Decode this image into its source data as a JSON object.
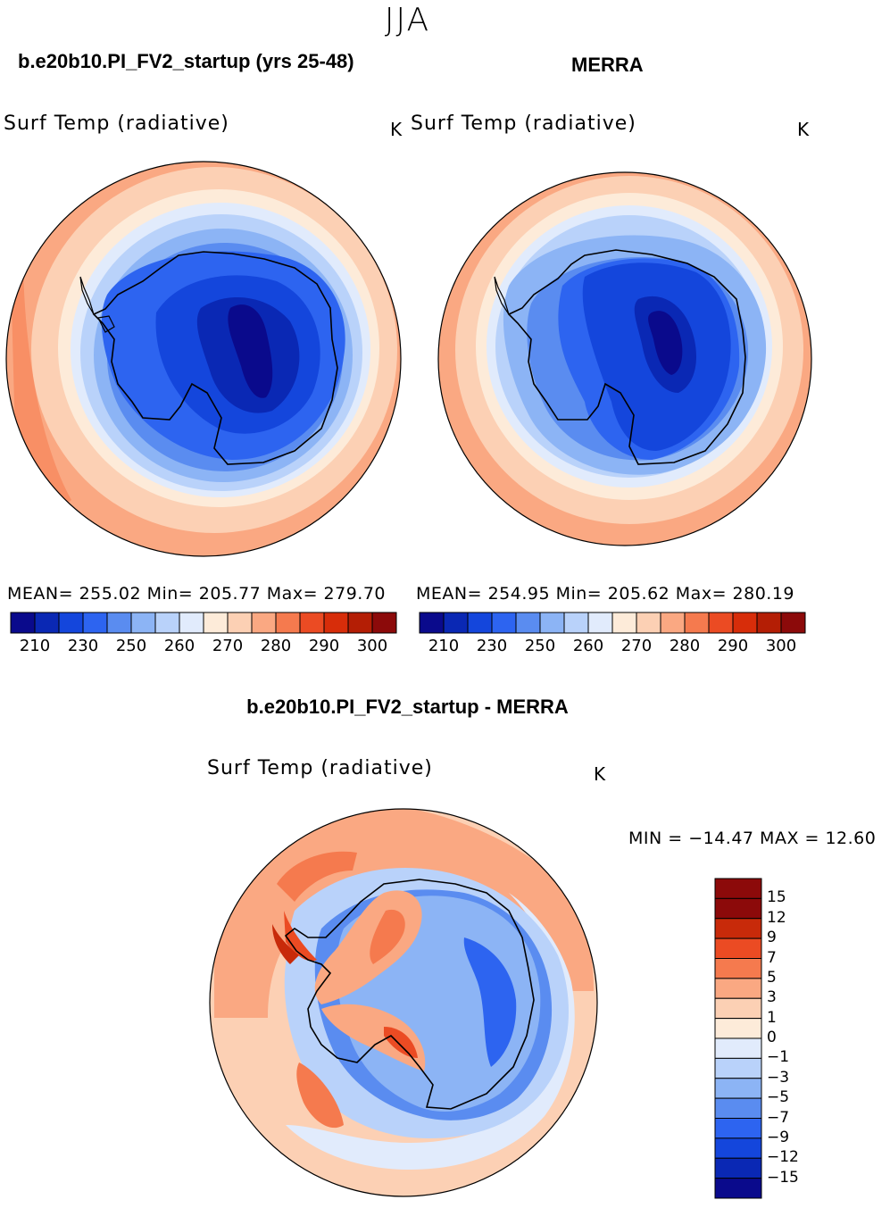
{
  "season": "JJA",
  "colors": {
    "model_ramp": [
      "#0a0a8c",
      "#0a28b4",
      "#1446dc",
      "#2d64f0",
      "#5a8cf0",
      "#8cb4f5",
      "#b9d2fa",
      "#e1ebfc",
      "#fdebd9",
      "#fcd0b4",
      "#faa882",
      "#f57a4e",
      "#eb4b23",
      "#d72d0a",
      "#b41e05",
      "#8c0a0a"
    ],
    "diff_ramp": [
      "#0a0a8c",
      "#0a28b4",
      "#1446dc",
      "#2d64f0",
      "#5a8cf0",
      "#8cb4f5",
      "#b9d2fa",
      "#e1ebfc",
      "#fdebd9",
      "#fcd0b4",
      "#faa882",
      "#f57a4e",
      "#eb4b23",
      "#c82a0a",
      "#8c0a0a"
    ]
  },
  "panels": {
    "model": {
      "case_title": "b.e20b10.PI_FV2_startup (yrs 25-48)",
      "field": "Surf Temp (radiative)",
      "unit": "K",
      "stats": "MEAN= 255.02  Min= 205.77  Max= 279.70",
      "cbar_ticks": [
        "210",
        "230",
        "250",
        "260",
        "270",
        "280",
        "290",
        "300"
      ]
    },
    "obs": {
      "case_title": "MERRA",
      "field": "Surf Temp (radiative)",
      "unit": "K",
      "stats": "MEAN= 254.95  Min= 205.62  Max= 280.19",
      "cbar_ticks": [
        "210",
        "230",
        "250",
        "260",
        "270",
        "280",
        "290",
        "300"
      ]
    },
    "diff": {
      "case_title": "b.e20b10.PI_FV2_startup - MERRA",
      "field": "Surf Temp (radiative)",
      "unit": "K",
      "minmax": "MIN = −14.47 MAX =  12.60",
      "cbar_ticks": [
        "15",
        "12",
        "9",
        "7",
        "5",
        "3",
        "1",
        "0",
        "−1",
        "−3",
        "−5",
        "−7",
        "−9",
        "−12",
        "−15"
      ]
    }
  },
  "chart_data": [
    {
      "type": "heatmap",
      "title": "Surf Temp (radiative) — b.e20b10.PI_FV2_startup (yrs 25-48), JJA",
      "projection": "south polar stereographic",
      "units": "K",
      "mean": 255.02,
      "min": 205.77,
      "max": 279.7,
      "levels": [
        205,
        210,
        220,
        230,
        240,
        250,
        255,
        260,
        265,
        270,
        275,
        280,
        285,
        290,
        295,
        300
      ]
    },
    {
      "type": "heatmap",
      "title": "Surf Temp (radiative) — MERRA, JJA",
      "projection": "south polar stereographic",
      "units": "K",
      "mean": 254.95,
      "min": 205.62,
      "max": 280.19,
      "levels": [
        205,
        210,
        220,
        230,
        240,
        250,
        255,
        260,
        265,
        270,
        275,
        280,
        285,
        290,
        295,
        300
      ]
    },
    {
      "type": "heatmap",
      "title": "Surf Temp (radiative) — b.e20b10.PI_FV2_startup - MERRA, JJA",
      "projection": "south polar stereographic",
      "units": "K",
      "min": -14.47,
      "max": 12.6,
      "levels": [
        -15,
        -12,
        -9,
        -7,
        -5,
        -3,
        -1,
        0,
        1,
        3,
        5,
        7,
        9,
        12,
        15
      ]
    }
  ]
}
